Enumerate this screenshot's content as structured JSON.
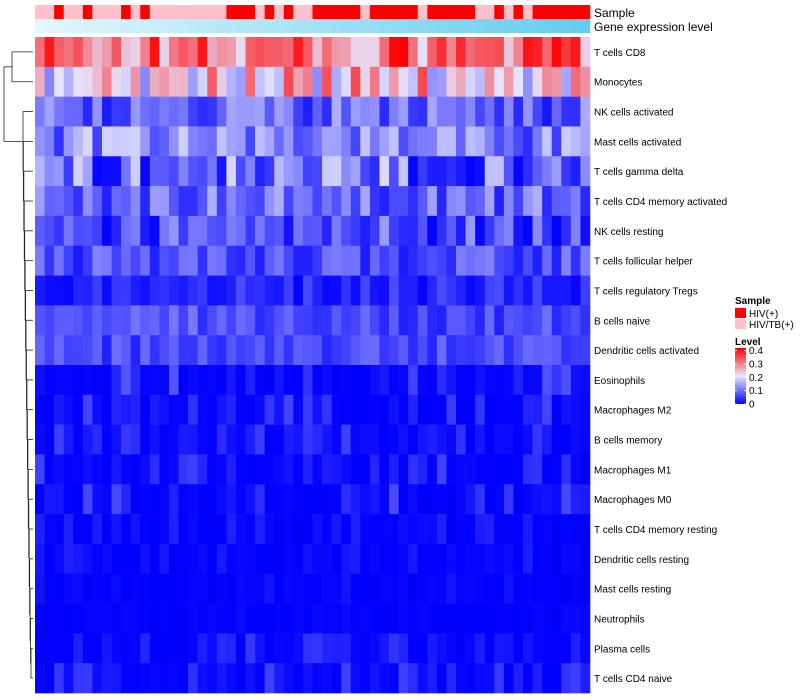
{
  "chart_data": {
    "type": "heatmap",
    "annotations": {
      "sample_label": "Sample",
      "gene_label": "Gene expression level",
      "sample_groups": [
        "HIV(+)",
        "HIV/TB(+)"
      ],
      "sample_colors": [
        "#ff0000",
        "#ffc0cb"
      ],
      "sample_assignments": [
        1,
        1,
        0,
        1,
        1,
        0,
        1,
        1,
        1,
        0,
        1,
        0,
        1,
        1,
        1,
        1,
        1,
        1,
        1,
        1,
        0,
        0,
        0,
        1,
        0,
        1,
        0,
        1,
        1,
        0,
        0,
        0,
        0,
        0,
        1,
        0,
        0,
        0,
        0,
        0,
        1,
        0,
        0,
        0,
        0,
        0,
        1,
        1,
        0,
        1,
        0,
        1,
        0,
        0,
        0,
        0,
        0,
        0
      ],
      "gene_expression_colors": [
        "#e3f6fc",
        "#63cdf0"
      ]
    },
    "rows": [
      "T cells CD8",
      "Monocytes",
      "NK cells activated",
      "Mast cells activated",
      "T cells gamma delta",
      "T cells CD4 memory activated",
      "NK cells resting",
      "T cells follicular helper",
      "T cells regulatory  Tregs",
      "B cells naive",
      "Dendritic cells activated",
      "Eosinophils",
      "Macrophages M2",
      "B cells memory",
      "Macrophages M1",
      "Macrophages M0",
      "T cells CD4 memory resting",
      "Dendritic cells resting",
      "Mast cells resting",
      "Neutrophils",
      "Plasma cells",
      "T cells CD4 naive"
    ],
    "n_columns": 58,
    "row_value_ranges": [
      [
        0.2,
        0.42
      ],
      [
        0.12,
        0.36
      ],
      [
        0.02,
        0.16
      ],
      [
        0.04,
        0.2
      ],
      [
        0.0,
        0.2
      ],
      [
        0.03,
        0.16
      ],
      [
        0.0,
        0.14
      ],
      [
        0.02,
        0.12
      ],
      [
        0.0,
        0.07
      ],
      [
        0.03,
        0.11
      ],
      [
        0.03,
        0.1
      ],
      [
        0.0,
        0.08
      ],
      [
        0.0,
        0.07
      ],
      [
        0.0,
        0.06
      ],
      [
        0.0,
        0.06
      ],
      [
        0.0,
        0.07
      ],
      [
        0.0,
        0.03
      ],
      [
        0.0,
        0.03
      ],
      [
        0.0,
        0.02
      ],
      [
        0.0,
        0.01
      ],
      [
        0.0,
        0.05
      ],
      [
        0.0,
        0.06
      ]
    ],
    "legend": {
      "sample_title": "Sample",
      "sample_entries": [
        "HIV(+)",
        "HIV/TB(+)"
      ],
      "level_title": "Level",
      "level_ticks": [
        "0.4",
        "0.3",
        "0.2",
        "0.1",
        "0"
      ],
      "level_tick_values": [
        0.4,
        0.3,
        0.2,
        0.1,
        0
      ],
      "color_scale": {
        "min": 0,
        "max": 0.42,
        "colors": [
          "#0000ff",
          "#e6e6ff",
          "#ff0000"
        ]
      }
    }
  }
}
